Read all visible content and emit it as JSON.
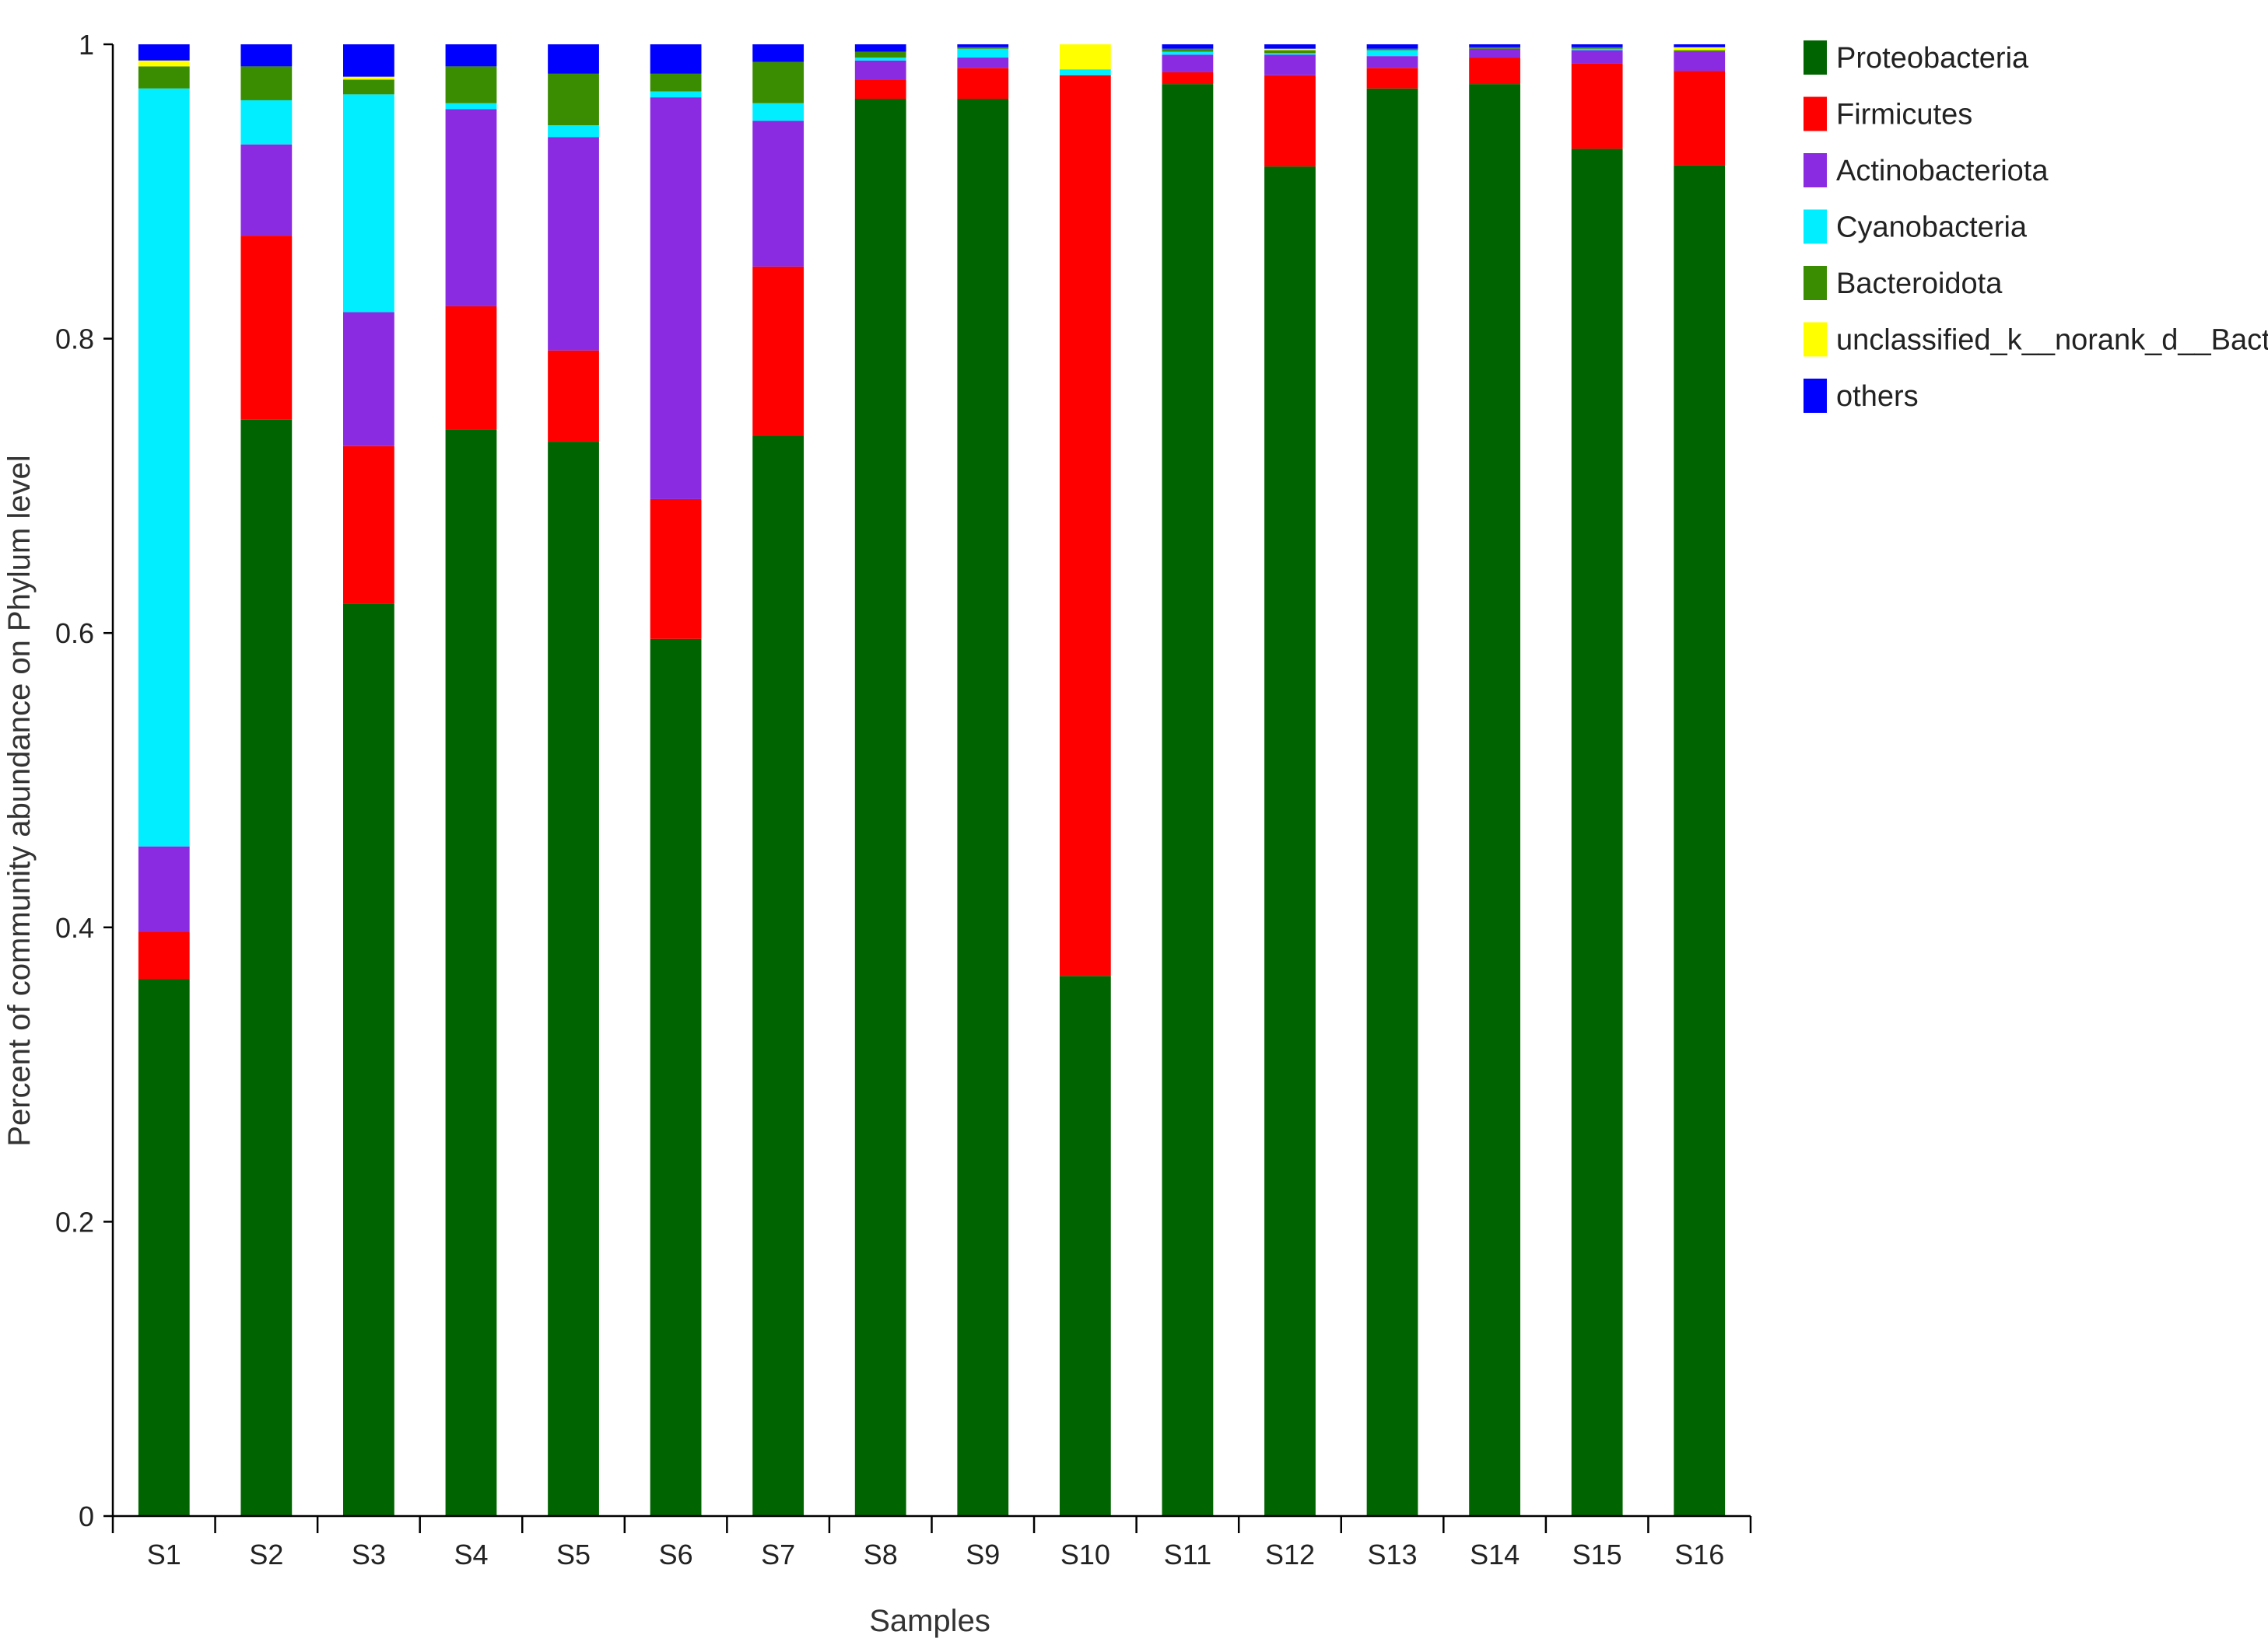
{
  "chart_data": {
    "type": "bar",
    "stacked": true,
    "title": "",
    "xlabel": "Samples",
    "ylabel": "Percent of community abundance on Phylum level",
    "ylim": [
      0,
      1
    ],
    "yticks": [
      "0",
      "0.2",
      "0.4",
      "0.6",
      "0.8",
      "1"
    ],
    "legend_position": "right",
    "categories": [
      "S1",
      "S2",
      "S3",
      "S4",
      "S5",
      "S6",
      "S7",
      "S8",
      "S9",
      "S10",
      "S11",
      "S12",
      "S13",
      "S14",
      "S15",
      "S16"
    ],
    "series": [
      {
        "name": "Proteobacteria",
        "color": "#006400",
        "values": [
          0.365,
          0.745,
          0.62,
          0.738,
          0.73,
          0.596,
          0.734,
          0.963,
          0.963,
          0.367,
          0.973,
          0.917,
          0.97,
          0.973,
          0.929,
          0.918
        ]
      },
      {
        "name": "Firmicutes",
        "color": "#ff0000",
        "values": [
          0.032,
          0.125,
          0.107,
          0.084,
          0.062,
          0.095,
          0.115,
          0.013,
          0.021,
          0.612,
          0.008,
          0.062,
          0.014,
          0.018,
          0.058,
          0.064
        ]
      },
      {
        "name": "Actinobacteriota",
        "color": "#8a2be2",
        "values": [
          0.058,
          0.062,
          0.091,
          0.134,
          0.145,
          0.273,
          0.099,
          0.013,
          0.007,
          0.0,
          0.012,
          0.014,
          0.008,
          0.006,
          0.009,
          0.013
        ]
      },
      {
        "name": "Cyanobacteria",
        "color": "#00eeff",
        "values": [
          0.515,
          0.03,
          0.148,
          0.004,
          0.008,
          0.004,
          0.012,
          0.002,
          0.006,
          0.004,
          0.002,
          0.001,
          0.004,
          0.0,
          0.001,
          0.0
        ]
      },
      {
        "name": "Bacteroidota",
        "color": "#3a8c00",
        "values": [
          0.015,
          0.023,
          0.01,
          0.025,
          0.035,
          0.012,
          0.028,
          0.004,
          0.001,
          0.0,
          0.002,
          0.002,
          0.001,
          0.001,
          0.001,
          0.001
        ]
      },
      {
        "name": "unclassified_k__norank_d__Bacteria",
        "color": "#ffff00",
        "values": [
          0.004,
          0.0,
          0.002,
          0.0,
          0.0,
          0.0,
          0.0,
          0.0,
          0.0,
          0.017,
          0.0,
          0.001,
          0.0,
          0.0,
          0.0,
          0.002
        ]
      },
      {
        "name": "others",
        "color": "#0000ff",
        "values": [
          0.011,
          0.015,
          0.022,
          0.015,
          0.02,
          0.02,
          0.012,
          0.005,
          0.002,
          0.0,
          0.003,
          0.003,
          0.003,
          0.002,
          0.002,
          0.002
        ]
      }
    ]
  }
}
